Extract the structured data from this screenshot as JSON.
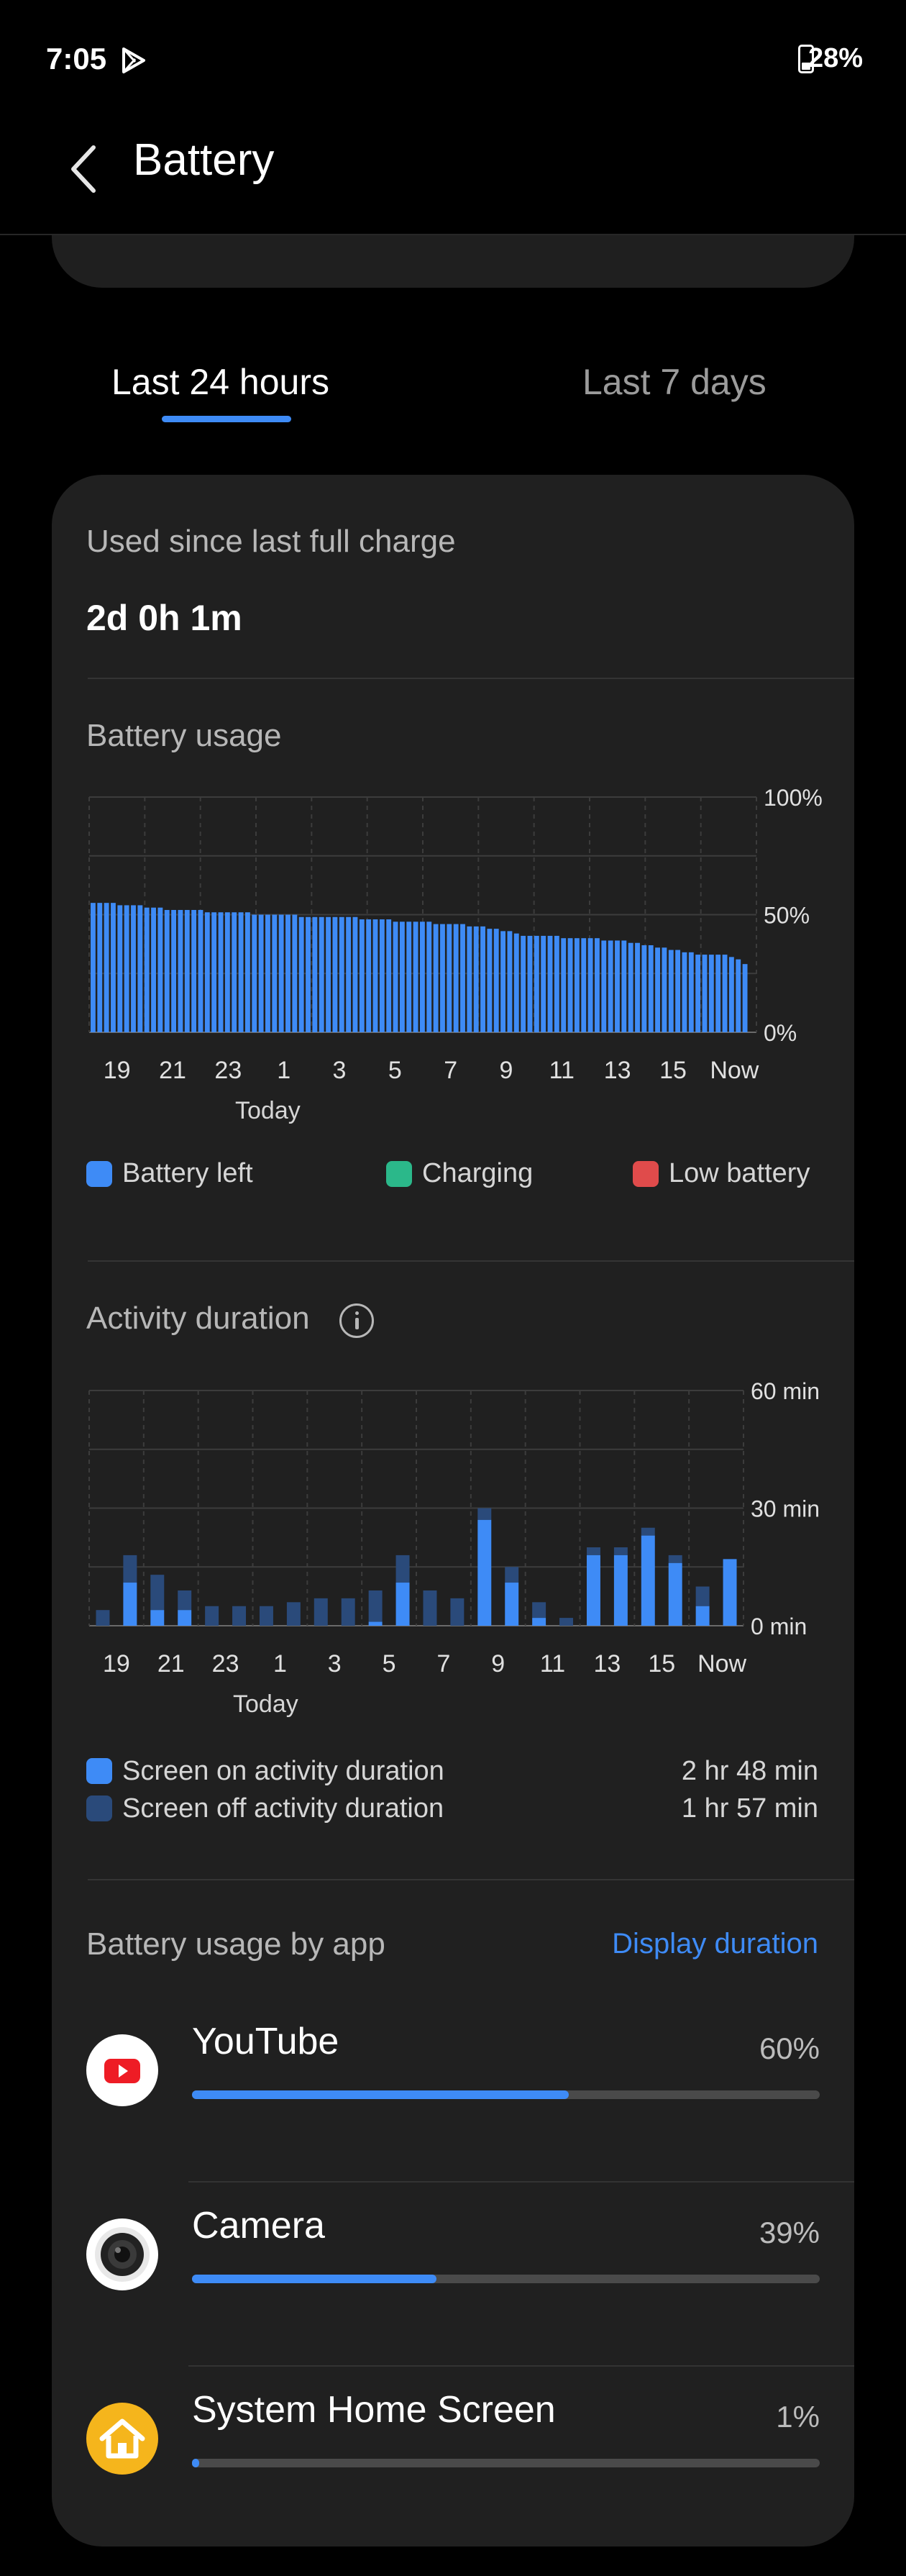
{
  "status_bar": {
    "time": "7:05",
    "battery_percent": "28%",
    "cast_icon": "play-store-icon",
    "battery_icon": "battery-icon"
  },
  "header": {
    "back_icon": "chevron-left-icon",
    "title": "Battery"
  },
  "tabs": [
    {
      "label": "Last 24 hours",
      "selected": true
    },
    {
      "label": "Last 7 days",
      "selected": false
    }
  ],
  "summary": {
    "label": "Used since last full charge",
    "value": "2d 0h 1m"
  },
  "battery_usage": {
    "title": "Battery usage",
    "y_labels": [
      "100%",
      "50%",
      "0%"
    ],
    "x_labels": [
      "19",
      "21",
      "23",
      "1",
      "3",
      "5",
      "7",
      "9",
      "11",
      "13",
      "15",
      "Now"
    ],
    "x_sub_label": "Today",
    "legend": [
      {
        "label": "Battery left",
        "color": "#3e8bf6"
      },
      {
        "label": "Charging",
        "color": "#2bb88a"
      },
      {
        "label": "Low battery",
        "color": "#e04b4b"
      }
    ]
  },
  "activity": {
    "title": "Activity duration",
    "info_icon": "info-icon",
    "y_labels": [
      "60 min",
      "30 min",
      "0 min"
    ],
    "x_labels": [
      "19",
      "21",
      "23",
      "1",
      "3",
      "5",
      "7",
      "9",
      "11",
      "13",
      "15",
      "Now"
    ],
    "x_sub_label": "Today",
    "rows": [
      {
        "label": "Screen on activity duration",
        "value": "2 hr 48 min",
        "color": "#3e8bf6"
      },
      {
        "label": "Screen off activity duration",
        "value": "1 hr 57 min",
        "color": "#2a4a7a"
      }
    ]
  },
  "apps_section": {
    "title": "Battery usage by app",
    "action": "Display duration",
    "apps": [
      {
        "name": "YouTube",
        "percent": "60%",
        "fraction": 0.6,
        "icon": "youtube-icon"
      },
      {
        "name": "Camera",
        "percent": "39%",
        "fraction": 0.39,
        "icon": "camera-icon"
      },
      {
        "name": "System Home Screen",
        "percent": "1%",
        "fraction": 0.01,
        "icon": "home-icon"
      }
    ]
  },
  "chart_data": [
    {
      "type": "bar",
      "title": "Battery usage",
      "ylabel": "",
      "ylim": [
        0,
        100
      ],
      "y_ticks": [
        "0%",
        "50%",
        "100%"
      ],
      "x_tick_labels": [
        "19",
        "21",
        "23",
        "1",
        "3",
        "5",
        "7",
        "9",
        "11",
        "13",
        "15",
        "Now"
      ],
      "series": [
        {
          "name": "Battery left",
          "values": [
            55,
            55,
            55,
            55,
            54,
            54,
            54,
            54,
            53,
            53,
            53,
            52,
            52,
            52,
            52,
            52,
            52,
            51,
            51,
            51,
            51,
            51,
            51,
            51,
            50,
            50,
            50,
            50,
            50,
            50,
            50,
            49,
            49,
            49,
            49,
            49,
            49,
            49,
            49,
            49,
            48,
            48,
            48,
            48,
            48,
            47,
            47,
            47,
            47,
            47,
            47,
            46,
            46,
            46,
            46,
            46,
            45,
            45,
            45,
            44,
            44,
            43,
            43,
            42,
            41,
            41,
            41,
            41,
            41,
            41,
            40,
            40,
            40,
            40,
            40,
            40,
            39,
            39,
            39,
            39,
            38,
            38,
            37,
            37,
            36,
            36,
            35,
            35,
            34,
            34,
            33,
            33,
            33,
            33,
            33,
            32,
            31,
            29
          ]
        }
      ]
    },
    {
      "type": "bar",
      "title": "Activity duration",
      "ylabel": "",
      "ylim": [
        0,
        60
      ],
      "y_ticks": [
        "0 min",
        "30 min",
        "60 min"
      ],
      "x_tick_labels": [
        "19",
        "21",
        "23",
        "1",
        "3",
        "5",
        "7",
        "9",
        "11",
        "13",
        "15",
        "Now"
      ],
      "series": [
        {
          "name": "Screen on activity duration",
          "values": [
            0,
            11,
            4,
            4,
            0,
            0,
            0,
            0,
            0,
            0,
            1,
            11,
            0,
            0,
            27,
            11,
            2,
            0,
            18,
            18,
            23,
            16,
            5,
            17
          ]
        },
        {
          "name": "Screen off activity duration",
          "values": [
            4,
            7,
            9,
            5,
            5,
            5,
            5,
            6,
            7,
            7,
            8,
            7,
            9,
            7,
            3,
            4,
            4,
            2,
            2,
            2,
            2,
            2,
            5,
            0
          ]
        }
      ]
    }
  ]
}
